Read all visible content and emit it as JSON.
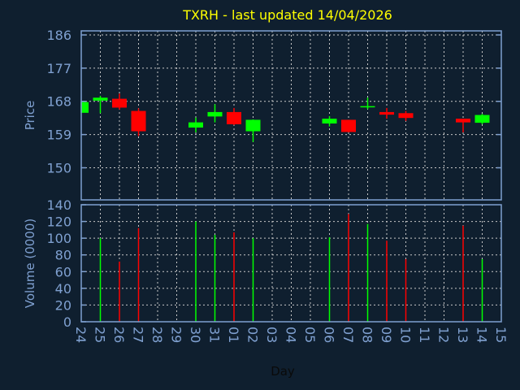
{
  "chart_data": [
    {
      "type": "candlestick",
      "title": "TXRH - last updated 14/04/2026",
      "ylabel": "Price",
      "ylim": [
        141.3,
        187.1
      ],
      "yticks": [
        150,
        159,
        168,
        177,
        186
      ],
      "grid": true,
      "x_ticks": [
        "24",
        "25",
        "26",
        "27",
        "28",
        "29",
        "30",
        "31",
        "01",
        "02",
        "03",
        "04",
        "05",
        "06",
        "07",
        "08",
        "09",
        "10",
        "11",
        "12",
        "13",
        "14",
        "15"
      ],
      "candles": [
        {
          "day": "24",
          "open": 164.9,
          "high": 167.8,
          "low": 164.9,
          "close": 167.8
        },
        {
          "day": "25",
          "open": 168.2,
          "high": 169.5,
          "low": 164.8,
          "close": 169.0
        },
        {
          "day": "26",
          "open": 168.7,
          "high": 170.1,
          "low": 165.8,
          "close": 166.3
        },
        {
          "day": "27",
          "open": 165.4,
          "high": 166.1,
          "low": 158.6,
          "close": 159.9
        },
        {
          "day": "30",
          "open": 160.9,
          "high": 163.6,
          "low": 159.6,
          "close": 162.3
        },
        {
          "day": "31",
          "open": 163.9,
          "high": 167.2,
          "low": 162.3,
          "close": 165.1
        },
        {
          "day": "01",
          "open": 165.1,
          "high": 166.2,
          "low": 161.6,
          "close": 161.8
        },
        {
          "day": "02",
          "open": 159.9,
          "high": 163.1,
          "low": 157.0,
          "close": 163.0
        },
        {
          "day": "06",
          "open": 162.0,
          "high": 164.0,
          "low": 161.2,
          "close": 163.3
        },
        {
          "day": "07",
          "open": 163.0,
          "high": 163.0,
          "low": 159.6,
          "close": 159.7
        },
        {
          "day": "08",
          "open": 166.5,
          "high": 169.0,
          "low": 165.9,
          "close": 166.7
        },
        {
          "day": "09",
          "open": 165.1,
          "high": 166.2,
          "low": 163.3,
          "close": 164.4
        },
        {
          "day": "10",
          "open": 164.8,
          "high": 165.4,
          "low": 162.7,
          "close": 163.5
        },
        {
          "day": "13",
          "open": 163.3,
          "high": 163.3,
          "low": 159.6,
          "close": 162.3
        },
        {
          "day": "14",
          "open": 162.2,
          "high": 164.6,
          "low": 161.8,
          "close": 164.3
        }
      ]
    },
    {
      "type": "bar",
      "ylabel": "Volume (0000)",
      "xlabel": "Day",
      "ylim": [
        0,
        140
      ],
      "yticks": [
        0,
        20,
        40,
        60,
        80,
        100,
        120,
        140
      ],
      "grid": true,
      "bars": [
        {
          "day": "25",
          "value": 100,
          "direction": "up"
        },
        {
          "day": "26",
          "value": 72,
          "direction": "down"
        },
        {
          "day": "27",
          "value": 112,
          "direction": "down"
        },
        {
          "day": "30",
          "value": 120,
          "direction": "up"
        },
        {
          "day": "31",
          "value": 104,
          "direction": "up"
        },
        {
          "day": "01",
          "value": 107,
          "direction": "down"
        },
        {
          "day": "02",
          "value": 100,
          "direction": "up"
        },
        {
          "day": "06",
          "value": 101,
          "direction": "up"
        },
        {
          "day": "07",
          "value": 129,
          "direction": "down"
        },
        {
          "day": "08",
          "value": 117,
          "direction": "up"
        },
        {
          "day": "09",
          "value": 97,
          "direction": "down"
        },
        {
          "day": "10",
          "value": 75,
          "direction": "down"
        },
        {
          "day": "13",
          "value": 115,
          "direction": "down"
        },
        {
          "day": "14",
          "value": 75,
          "direction": "up"
        }
      ]
    }
  ],
  "colors": {
    "background": "#0f1f2f",
    "up": "#00ff00",
    "down": "#ff0000",
    "axis": "#7fa0d0",
    "title": "#ffff00",
    "grid": "#c8c8c8"
  }
}
